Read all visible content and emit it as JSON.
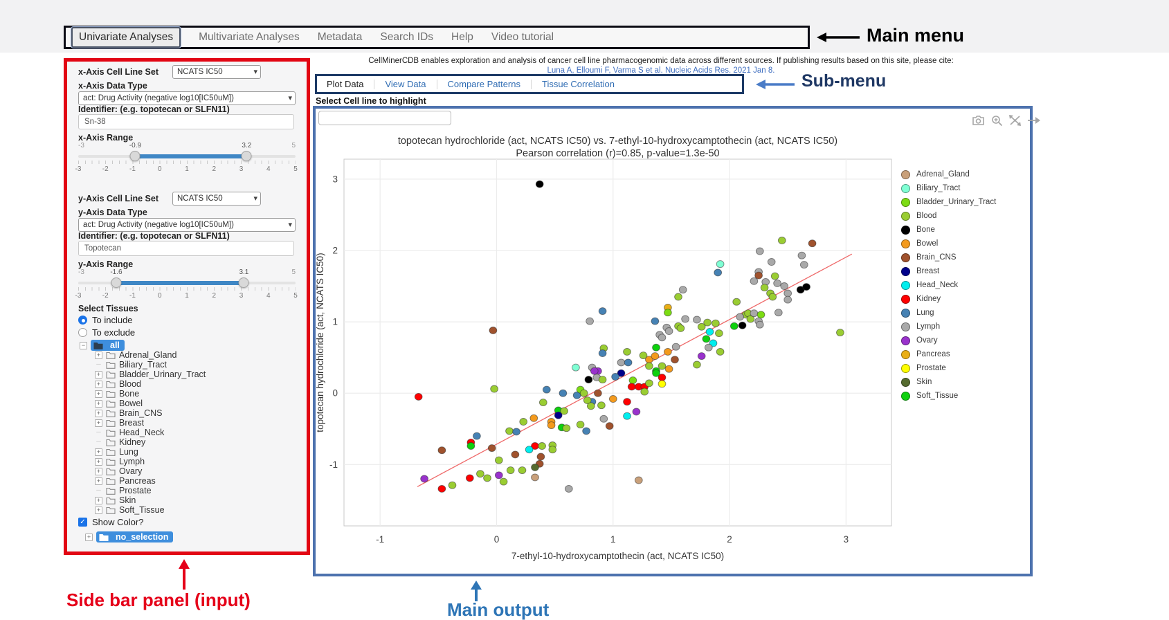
{
  "annotations": {
    "main_menu": "Main menu",
    "sub_menu": "Sub-menu",
    "sidebar": "Side bar panel (input)",
    "main_output": "Main output"
  },
  "main_menu": {
    "items": [
      {
        "label": "Univariate Analyses",
        "active": true
      },
      {
        "label": "Multivariate Analyses",
        "active": false
      },
      {
        "label": "Metadata",
        "active": false
      },
      {
        "label": "Search IDs",
        "active": false
      },
      {
        "label": "Help",
        "active": false
      },
      {
        "label": "Video tutorial",
        "active": false
      }
    ]
  },
  "citation": {
    "line1": "CellMinerCDB enables exploration and analysis of cancer cell line pharmacogenomic data across different sources. If publishing results based on this site, please cite:",
    "link": "Luna A, Elloumi F, Varma S et al. Nucleic Acids Res. 2021 Jan 8."
  },
  "sub_menu": {
    "items": [
      {
        "label": "Plot Data",
        "active": true
      },
      {
        "label": "View Data",
        "active": false
      },
      {
        "label": "Compare Patterns",
        "active": false
      },
      {
        "label": "Tissue Correlation",
        "active": false
      }
    ]
  },
  "highlight": {
    "label": "Select Cell line to highlight",
    "value": "",
    "placeholder": ""
  },
  "sidebar": {
    "x_axis": {
      "cell_line_set_label": "x-Axis Cell Line Set",
      "cell_line_set_value": "NCATS IC50",
      "data_type_label": "x-Axis Data Type",
      "data_type_value": "act: Drug Activity (negative log10[IC50uM])",
      "identifier_label": "Identifier: (e.g. topotecan or SLFN11)",
      "identifier_value": "Sn-38",
      "range_label": "x-Axis Range",
      "range": {
        "min": -3,
        "max": 5,
        "from": -0.9,
        "to": 3.2,
        "from_label": "-0.9",
        "to_label": "3.2",
        "min_label": "-3",
        "max_label": "5",
        "ticks": [
          "-3",
          "-2",
          "-1",
          "0",
          "1",
          "2",
          "3",
          "4",
          "5"
        ]
      }
    },
    "y_axis": {
      "cell_line_set_label": "y-Axis Cell Line Set",
      "cell_line_set_value": "NCATS IC50",
      "data_type_label": "y-Axis Data Type",
      "data_type_value": "act: Drug Activity (negative log10[IC50uM])",
      "identifier_label": "Identifier: (e.g. topotecan or SLFN11)",
      "identifier_value": "Topotecan",
      "range_label": "y-Axis Range",
      "range": {
        "min": -3,
        "max": 5,
        "from": -1.6,
        "to": 3.1,
        "from_label": "-1.6",
        "to_label": "3.1",
        "min_label": "-3",
        "max_label": "5",
        "ticks": [
          "-3",
          "-2",
          "-1",
          "0",
          "1",
          "2",
          "3",
          "4",
          "5"
        ]
      }
    },
    "tissues": {
      "label": "Select Tissues",
      "radio_include": "To include",
      "radio_exclude": "To exclude",
      "include_selected": true,
      "root_label": "all",
      "items": [
        {
          "label": "Adrenal_Gland",
          "expandable": true
        },
        {
          "label": "Biliary_Tract",
          "expandable": false
        },
        {
          "label": "Bladder_Urinary_Tract",
          "expandable": true
        },
        {
          "label": "Blood",
          "expandable": true
        },
        {
          "label": "Bone",
          "expandable": true
        },
        {
          "label": "Bowel",
          "expandable": true
        },
        {
          "label": "Brain_CNS",
          "expandable": true
        },
        {
          "label": "Breast",
          "expandable": true
        },
        {
          "label": "Head_Neck",
          "expandable": false
        },
        {
          "label": "Kidney",
          "expandable": false
        },
        {
          "label": "Lung",
          "expandable": true
        },
        {
          "label": "Lymph",
          "expandable": true
        },
        {
          "label": "Ovary",
          "expandable": true
        },
        {
          "label": "Pancreas",
          "expandable": true
        },
        {
          "label": "Prostate",
          "expandable": false
        },
        {
          "label": "Skin",
          "expandable": true
        },
        {
          "label": "Soft_Tissue",
          "expandable": true
        }
      ],
      "show_color_label": "Show Color?",
      "show_color_checked": true,
      "selection_root_label": "no_selection"
    }
  },
  "modebar_icons": [
    "camera-icon",
    "zoom-in-icon",
    "pan-icon",
    "autoscale-icon"
  ],
  "chart_data": {
    "type": "scatter",
    "title": "topotecan hydrochloride (act, NCATS IC50) vs. 7-ethyl-10-hydroxycamptothecin (act, NCATS IC50)",
    "subtitle": "Pearson correlation (r)=0.85, p-value=1.3e-50",
    "xlabel": "7-ethyl-10-hydroxycamptothecin (act, NCATS IC50)",
    "ylabel": "topotecan hydrochloride (act, NCATS IC50)",
    "xlim": [
      -1.31,
      3.39
    ],
    "ylim": [
      -1.86,
      3.28
    ],
    "xticks": [
      -1,
      0,
      1,
      2,
      3
    ],
    "yticks": [
      -1,
      0,
      1,
      2,
      3
    ],
    "grid": true,
    "legend_position": "right",
    "pearson_r": 0.85,
    "p_value": "1.3e-50",
    "regression_line": {
      "x1": -0.68,
      "y1": -1.31,
      "x2": 3.05,
      "y2": 1.95,
      "color": "#ef6a6a"
    },
    "tissue_colors": {
      "Adrenal_Gland": "#c9a07a",
      "Biliary_Tract": "#7fffd4",
      "Bladder_Urinary_Tract": "#7cdc13",
      "Blood": "#9acd32",
      "Bone": "#000000",
      "Bowel": "#f39a1d",
      "Brain_CNS": "#a0522d",
      "Breast": "#00008b",
      "Head_Neck": "#00eeee",
      "Kidney": "#ff0000",
      "Lung": "#4682b4",
      "Lymph": "#a9a9a9",
      "Ovary": "#9932cc",
      "Pancreas": "#eaaf16",
      "Prostate": "#ffff00",
      "Skin": "#556b2f",
      "Soft_Tissue": "#0ed10e"
    },
    "points": [
      [
        0.37,
        2.93,
        "Bone"
      ],
      [
        -0.03,
        0.88,
        "Brain_CNS"
      ],
      [
        2.45,
        2.14,
        "Blood"
      ],
      [
        2.71,
        2.1,
        "Brain_CNS"
      ],
      [
        2.26,
        1.99,
        "Lymph"
      ],
      [
        2.36,
        1.84,
        "Lymph"
      ],
      [
        2.62,
        1.93,
        "Lymph"
      ],
      [
        2.64,
        1.8,
        "Lymph"
      ],
      [
        1.92,
        1.81,
        "Biliary_Tract"
      ],
      [
        1.9,
        1.69,
        "Lung"
      ],
      [
        2.25,
        1.7,
        "Lymph"
      ],
      [
        2.25,
        1.65,
        "Brain_CNS"
      ],
      [
        2.21,
        1.57,
        "Lymph"
      ],
      [
        2.31,
        1.56,
        "Lymph"
      ],
      [
        2.39,
        1.64,
        "Blood"
      ],
      [
        2.41,
        1.54,
        "Lymph"
      ],
      [
        2.47,
        1.5,
        "Lymph"
      ],
      [
        2.61,
        1.45,
        "Bone"
      ],
      [
        2.66,
        1.49,
        "Bone"
      ],
      [
        2.3,
        1.48,
        "Blood"
      ],
      [
        2.5,
        1.4,
        "Lymph"
      ],
      [
        2.5,
        1.31,
        "Lymph"
      ],
      [
        2.35,
        1.4,
        "Blood"
      ],
      [
        2.37,
        1.35,
        "Blood"
      ],
      [
        1.6,
        1.45,
        "Lymph"
      ],
      [
        1.56,
        1.35,
        "Blood"
      ],
      [
        1.47,
        1.2,
        "Pancreas"
      ],
      [
        1.47,
        1.13,
        "Bladder_Urinary_Tract"
      ],
      [
        0.91,
        1.15,
        "Lung"
      ],
      [
        0.8,
        1.01,
        "Lymph"
      ],
      [
        1.36,
        1.01,
        "Lung"
      ],
      [
        2.06,
        1.28,
        "Blood"
      ],
      [
        2.14,
        1.1,
        "Blood"
      ],
      [
        2.25,
        1.01,
        "Lymph"
      ],
      [
        2.16,
        1.12,
        "Blood"
      ],
      [
        2.04,
        0.94,
        "Soft_Tissue"
      ],
      [
        2.11,
        0.95,
        "Bone"
      ],
      [
        2.18,
        1.04,
        "Blood"
      ],
      [
        1.46,
        0.92,
        "Lymph"
      ],
      [
        1.56,
        0.94,
        "Blood"
      ],
      [
        1.4,
        0.82,
        "Lymph"
      ],
      [
        1.62,
        1.04,
        "Lymph"
      ],
      [
        1.72,
        1.03,
        "Lymph"
      ],
      [
        1.76,
        0.93,
        "Blood"
      ],
      [
        1.81,
        0.99,
        "Blood"
      ],
      [
        1.83,
        0.86,
        "Head_Neck"
      ],
      [
        1.8,
        0.76,
        "Soft_Tissue"
      ],
      [
        1.88,
        0.98,
        "Blood"
      ],
      [
        1.91,
        0.84,
        "Blood"
      ],
      [
        2.95,
        0.85,
        "Blood"
      ],
      [
        2.09,
        1.07,
        "Lymph"
      ],
      [
        2.21,
        1.12,
        "Lymph"
      ],
      [
        2.27,
        1.1,
        "Bladder_Urinary_Tract"
      ],
      [
        2.42,
        1.13,
        "Lymph"
      ],
      [
        2.26,
        0.96,
        "Lymph"
      ],
      [
        1.86,
        0.7,
        "Head_Neck"
      ],
      [
        1.82,
        0.64,
        "Lymph"
      ],
      [
        1.76,
        0.52,
        "Ovary"
      ],
      [
        1.92,
        0.58,
        "Blood"
      ],
      [
        1.72,
        0.4,
        "Blood"
      ],
      [
        1.37,
        0.64,
        "Soft_Tissue"
      ],
      [
        1.54,
        0.65,
        "Lymph"
      ],
      [
        1.47,
        0.58,
        "Bowel"
      ],
      [
        1.12,
        0.58,
        "Blood"
      ],
      [
        0.92,
        0.63,
        "Blood"
      ],
      [
        0.91,
        0.56,
        "Lung"
      ],
      [
        1.07,
        0.43,
        "Lymph"
      ],
      [
        1.13,
        0.43,
        "Lung"
      ],
      [
        1.26,
        0.53,
        "Blood"
      ],
      [
        1.31,
        0.47,
        "Bowel"
      ],
      [
        1.36,
        0.52,
        "Bowel"
      ],
      [
        1.37,
        0.31,
        "Soft_Tissue"
      ],
      [
        1.53,
        0.47,
        "Brain_CNS"
      ],
      [
        1.31,
        0.38,
        "Blood"
      ],
      [
        1.48,
        0.34,
        "Bowel"
      ],
      [
        1.42,
        0.38,
        "Blood"
      ],
      [
        0.87,
        0.31,
        "Ovary"
      ],
      [
        1.07,
        0.28,
        "Breast"
      ],
      [
        0.79,
        0.19,
        "Bone"
      ],
      [
        0.86,
        0.22,
        "Lymph"
      ],
      [
        0.91,
        0.19,
        "Blood"
      ],
      [
        1.02,
        0.23,
        "Lung"
      ],
      [
        1.37,
        0.28,
        "Soft_Tissue"
      ],
      [
        1.42,
        0.22,
        "Kidney"
      ],
      [
        1.17,
        0.18,
        "Bladder_Urinary_Tract"
      ],
      [
        1.42,
        0.13,
        "Prostate"
      ],
      [
        1.16,
        0.09,
        "Kidney"
      ],
      [
        1.22,
        0.09,
        "Kidney"
      ],
      [
        1.27,
        0.09,
        "Kidney"
      ],
      [
        1.27,
        0.02,
        "Blood"
      ],
      [
        1.31,
        0.14,
        "Blood"
      ],
      [
        0.87,
        0.0,
        "Brain_CNS"
      ],
      [
        1.0,
        -0.08,
        "Bowel"
      ],
      [
        0.82,
        -0.12,
        "Lung"
      ],
      [
        0.9,
        -0.17,
        "Blood"
      ],
      [
        1.12,
        -0.12,
        "Kidney"
      ],
      [
        1.12,
        -0.32,
        "Head_Neck"
      ],
      [
        1.2,
        -0.26,
        "Ovary"
      ],
      [
        0.92,
        -0.36,
        "Lymph"
      ],
      [
        0.97,
        -0.46,
        "Brain_CNS"
      ],
      [
        1.22,
        -1.22,
        "Adrenal_Gland"
      ],
      [
        0.68,
        0.36,
        "Biliary_Tract"
      ],
      [
        0.82,
        0.36,
        "Lymph"
      ],
      [
        0.84,
        0.31,
        "Ovary"
      ],
      [
        -0.67,
        -0.05,
        "Kidney"
      ],
      [
        -0.02,
        0.06,
        "Blood"
      ],
      [
        0.43,
        0.05,
        "Lung"
      ],
      [
        0.57,
        0.0,
        "Lung"
      ],
      [
        0.69,
        -0.03,
        "Lung"
      ],
      [
        0.72,
        0.05,
        "Bladder_Urinary_Tract"
      ],
      [
        0.75,
        0.0,
        "Blood"
      ],
      [
        0.4,
        -0.13,
        "Blood"
      ],
      [
        0.78,
        -0.1,
        "Blood"
      ],
      [
        0.81,
        -0.18,
        "Blood"
      ],
      [
        0.53,
        -0.24,
        "Soft_Tissue"
      ],
      [
        0.58,
        -0.25,
        "Blood"
      ],
      [
        0.53,
        -0.31,
        "Breast"
      ],
      [
        0.32,
        -0.35,
        "Bowel"
      ],
      [
        0.23,
        -0.4,
        "Blood"
      ],
      [
        0.47,
        -0.4,
        "Bowel"
      ],
      [
        0.47,
        -0.45,
        "Bowel"
      ],
      [
        0.56,
        -0.48,
        "Soft_Tissue"
      ],
      [
        0.6,
        -0.49,
        "Blood"
      ],
      [
        0.72,
        -0.44,
        "Blood"
      ],
      [
        0.77,
        -0.53,
        "Lung"
      ],
      [
        0.11,
        -0.53,
        "Blood"
      ],
      [
        0.17,
        -0.54,
        "Lung"
      ],
      [
        -0.17,
        -0.6,
        "Lung"
      ],
      [
        -0.22,
        -0.69,
        "Kidney"
      ],
      [
        -0.22,
        -0.74,
        "Soft_Tissue"
      ],
      [
        -0.04,
        -0.77,
        "Brain_CNS"
      ],
      [
        -0.47,
        -0.8,
        "Brain_CNS"
      ],
      [
        0.33,
        -0.74,
        "Kidney"
      ],
      [
        0.28,
        -0.79,
        "Head_Neck"
      ],
      [
        0.39,
        -0.74,
        "Blood"
      ],
      [
        0.48,
        -0.73,
        "Blood"
      ],
      [
        0.48,
        -0.79,
        "Blood"
      ],
      [
        0.16,
        -0.86,
        "Brain_CNS"
      ],
      [
        0.38,
        -0.89,
        "Brain_CNS"
      ],
      [
        0.37,
        -0.99,
        "Brain_CNS"
      ],
      [
        0.33,
        -1.04,
        "Skin"
      ],
      [
        0.02,
        -0.94,
        "Blood"
      ],
      [
        0.12,
        -1.08,
        "Blood"
      ],
      [
        0.22,
        -1.08,
        "Blood"
      ],
      [
        0.02,
        -1.15,
        "Ovary"
      ],
      [
        -0.14,
        -1.13,
        "Blood"
      ],
      [
        -0.08,
        -1.19,
        "Blood"
      ],
      [
        -0.23,
        -1.19,
        "Kidney"
      ],
      [
        0.06,
        -1.24,
        "Blood"
      ],
      [
        0.33,
        -1.18,
        "Adrenal_Gland"
      ],
      [
        -0.62,
        -1.2,
        "Ovary"
      ],
      [
        -0.47,
        -1.34,
        "Kidney"
      ],
      [
        -0.38,
        -1.29,
        "Blood"
      ],
      [
        0.62,
        -1.34,
        "Lymph"
      ],
      [
        1.48,
        0.87,
        "Lymph"
      ],
      [
        1.42,
        0.78,
        "Lymph"
      ],
      [
        1.58,
        0.91,
        "Blood"
      ]
    ]
  }
}
